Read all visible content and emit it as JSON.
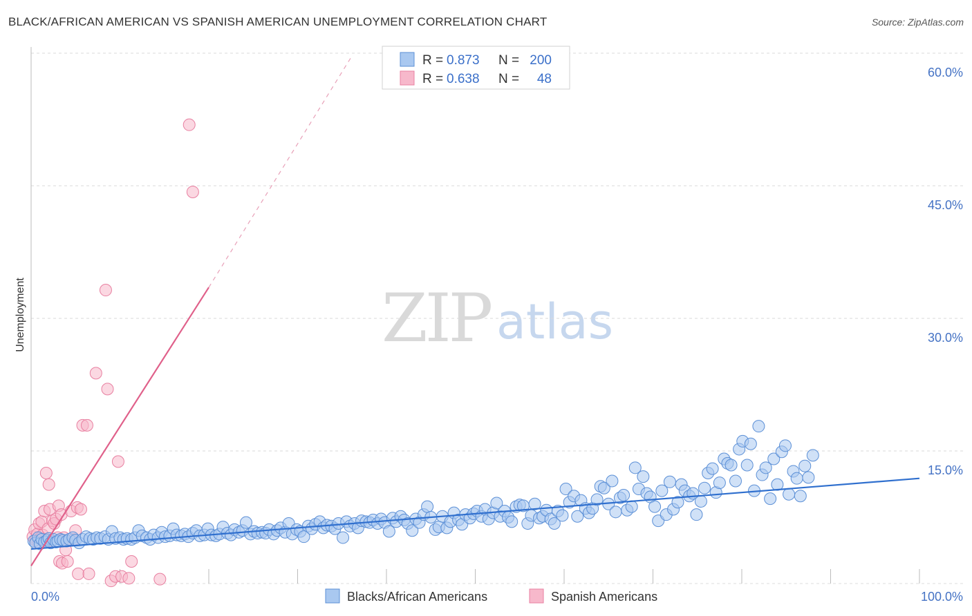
{
  "title": "BLACK/AFRICAN AMERICAN VS SPANISH AMERICAN UNEMPLOYMENT CORRELATION CHART",
  "source": "Source: ZipAtlas.com",
  "watermark": {
    "zip": "ZIP",
    "atlas": "atlas"
  },
  "legend_top": [
    {
      "r_label": "R =",
      "r_value": "0.873",
      "n_label": "N =",
      "n_value": "200"
    },
    {
      "r_label": "R =",
      "r_value": "0.638",
      "n_label": "N =",
      "n_value": "48"
    }
  ],
  "colors": {
    "blue_fill": "#a9c8f0",
    "blue_stroke": "#5b8fd6",
    "blue_line": "#2f6fce",
    "pink_fill": "#f7b8cb",
    "pink_stroke": "#e87fa0",
    "pink_line": "#e0608a",
    "grid": "#d9d9d9",
    "axis_text": "#4472c4"
  },
  "chart_data": {
    "type": "scatter",
    "title": "BLACK/AFRICAN AMERICAN VS SPANISH AMERICAN UNEMPLOYMENT CORRELATION CHART",
    "xlabel": "",
    "ylabel": "Unemployment",
    "xlim": [
      0,
      100
    ],
    "ylim": [
      0,
      60
    ],
    "x_tick_labels": [
      "0.0%",
      "100.0%"
    ],
    "y_ticks": [
      15,
      30,
      45,
      60
    ],
    "y_tick_labels": [
      "15.0%",
      "30.0%",
      "45.0%",
      "60.0%"
    ],
    "grid": true,
    "legend": "bottom-center",
    "series": [
      {
        "name": "Blacks/African Americans",
        "r": 0.873,
        "n": 200,
        "trend": {
          "x0": 0,
          "y0": 3.9,
          "x1": 100,
          "y1": 11.9
        },
        "points": [
          [
            0.3,
            4.8
          ],
          [
            0.5,
            4.6
          ],
          [
            0.8,
            5.2
          ],
          [
            1.0,
            4.5
          ],
          [
            1.2,
            5.0
          ],
          [
            1.5,
            4.7
          ],
          [
            1.8,
            4.9
          ],
          [
            2.0,
            5.1
          ],
          [
            2.2,
            4.6
          ],
          [
            2.5,
            5.0
          ],
          [
            2.8,
            4.7
          ],
          [
            3.0,
            4.8
          ],
          [
            3.3,
            5.0
          ],
          [
            3.6,
            4.9
          ],
          [
            4.0,
            4.8
          ],
          [
            4.3,
            5.0
          ],
          [
            4.7,
            5.2
          ],
          [
            5.0,
            4.9
          ],
          [
            5.4,
            4.6
          ],
          [
            5.8,
            5.0
          ],
          [
            6.2,
            5.3
          ],
          [
            6.6,
            5.1
          ],
          [
            7.0,
            5.0
          ],
          [
            7.4,
            5.2
          ],
          [
            7.8,
            5.1
          ],
          [
            8.3,
            5.3
          ],
          [
            8.7,
            5.0
          ],
          [
            9.1,
            5.9
          ],
          [
            9.5,
            5.1
          ],
          [
            10.0,
            5.2
          ],
          [
            10.4,
            5.0
          ],
          [
            10.8,
            5.1
          ],
          [
            11.3,
            5.0
          ],
          [
            11.7,
            5.2
          ],
          [
            12.1,
            6.0
          ],
          [
            12.5,
            5.4
          ],
          [
            13.0,
            5.2
          ],
          [
            13.4,
            5.0
          ],
          [
            13.8,
            5.5
          ],
          [
            14.3,
            5.2
          ],
          [
            14.7,
            5.8
          ],
          [
            15.1,
            5.3
          ],
          [
            15.6,
            5.4
          ],
          [
            16.0,
            6.2
          ],
          [
            16.4,
            5.5
          ],
          [
            16.9,
            5.4
          ],
          [
            17.3,
            5.6
          ],
          [
            17.7,
            5.3
          ],
          [
            18.2,
            5.7
          ],
          [
            18.6,
            6.0
          ],
          [
            19.0,
            5.4
          ],
          [
            19.5,
            5.5
          ],
          [
            19.9,
            6.2
          ],
          [
            20.3,
            5.5
          ],
          [
            20.8,
            5.4
          ],
          [
            21.2,
            5.6
          ],
          [
            21.6,
            6.4
          ],
          [
            22.1,
            5.7
          ],
          [
            22.5,
            5.5
          ],
          [
            22.9,
            6.1
          ],
          [
            23.4,
            5.8
          ],
          [
            23.8,
            6.0
          ],
          [
            24.2,
            6.9
          ],
          [
            24.7,
            5.6
          ],
          [
            25.1,
            5.9
          ],
          [
            25.5,
            5.7
          ],
          [
            26.0,
            5.8
          ],
          [
            26.4,
            5.7
          ],
          [
            26.8,
            6.1
          ],
          [
            27.3,
            5.6
          ],
          [
            27.7,
            6.0
          ],
          [
            28.1,
            6.3
          ],
          [
            28.6,
            5.8
          ],
          [
            29.0,
            6.8
          ],
          [
            29.4,
            5.6
          ],
          [
            29.9,
            6.1
          ],
          [
            30.3,
            5.9
          ],
          [
            30.7,
            5.3
          ],
          [
            31.2,
            6.5
          ],
          [
            31.6,
            6.2
          ],
          [
            32.0,
            6.7
          ],
          [
            32.5,
            7.0
          ],
          [
            32.9,
            6.3
          ],
          [
            33.3,
            6.6
          ],
          [
            33.8,
            6.5
          ],
          [
            34.2,
            6.2
          ],
          [
            34.6,
            6.8
          ],
          [
            35.1,
            5.2
          ],
          [
            35.5,
            7.0
          ],
          [
            35.9,
            6.5
          ],
          [
            36.4,
            6.8
          ],
          [
            36.8,
            6.3
          ],
          [
            37.2,
            7.1
          ],
          [
            37.7,
            7.0
          ],
          [
            38.1,
            6.9
          ],
          [
            38.5,
            7.2
          ],
          [
            39.0,
            6.8
          ],
          [
            39.4,
            7.3
          ],
          [
            39.8,
            6.9
          ],
          [
            40.3,
            5.9
          ],
          [
            40.7,
            7.4
          ],
          [
            41.1,
            7.0
          ],
          [
            41.6,
            7.6
          ],
          [
            42.0,
            7.2
          ],
          [
            42.4,
            6.8
          ],
          [
            42.9,
            6.0
          ],
          [
            43.3,
            7.3
          ],
          [
            43.7,
            6.9
          ],
          [
            44.2,
            7.8
          ],
          [
            44.6,
            8.7
          ],
          [
            45.0,
            7.5
          ],
          [
            45.5,
            6.1
          ],
          [
            45.9,
            6.4
          ],
          [
            46.3,
            7.6
          ],
          [
            46.8,
            6.3
          ],
          [
            47.2,
            7.0
          ],
          [
            47.6,
            8.0
          ],
          [
            48.1,
            7.2
          ],
          [
            48.5,
            6.7
          ],
          [
            48.9,
            7.8
          ],
          [
            49.4,
            7.4
          ],
          [
            49.8,
            7.9
          ],
          [
            50.2,
            8.2
          ],
          [
            50.7,
            7.6
          ],
          [
            51.1,
            8.4
          ],
          [
            51.5,
            7.3
          ],
          [
            52.0,
            8.0
          ],
          [
            52.4,
            9.1
          ],
          [
            52.8,
            7.6
          ],
          [
            53.3,
            8.2
          ],
          [
            53.7,
            7.5
          ],
          [
            54.1,
            7.0
          ],
          [
            54.6,
            8.7
          ],
          [
            55.0,
            8.9
          ],
          [
            55.4,
            8.8
          ],
          [
            55.9,
            6.8
          ],
          [
            56.3,
            7.7
          ],
          [
            56.7,
            9.0
          ],
          [
            57.2,
            7.4
          ],
          [
            57.6,
            7.6
          ],
          [
            58.0,
            8.3
          ],
          [
            58.5,
            7.3
          ],
          [
            58.9,
            6.8
          ],
          [
            59.3,
            8.2
          ],
          [
            59.8,
            7.7
          ],
          [
            60.2,
            10.7
          ],
          [
            60.6,
            9.2
          ],
          [
            61.1,
            9.9
          ],
          [
            61.5,
            7.6
          ],
          [
            61.9,
            9.4
          ],
          [
            62.4,
            8.5
          ],
          [
            62.8,
            8.0
          ],
          [
            63.2,
            8.5
          ],
          [
            63.7,
            9.5
          ],
          [
            64.1,
            11.0
          ],
          [
            64.5,
            10.8
          ],
          [
            65.0,
            9.0
          ],
          [
            65.4,
            11.6
          ],
          [
            65.8,
            8.1
          ],
          [
            66.3,
            9.7
          ],
          [
            66.7,
            10.0
          ],
          [
            67.1,
            8.3
          ],
          [
            67.6,
            8.7
          ],
          [
            68.0,
            13.1
          ],
          [
            68.4,
            10.7
          ],
          [
            68.9,
            12.1
          ],
          [
            69.3,
            10.2
          ],
          [
            69.7,
            9.8
          ],
          [
            70.2,
            8.7
          ],
          [
            70.6,
            7.1
          ],
          [
            71.0,
            10.5
          ],
          [
            71.5,
            7.8
          ],
          [
            71.9,
            11.5
          ],
          [
            72.3,
            8.4
          ],
          [
            72.8,
            9.2
          ],
          [
            73.2,
            11.2
          ],
          [
            73.6,
            10.5
          ],
          [
            74.1,
            9.9
          ],
          [
            74.5,
            10.2
          ],
          [
            74.9,
            7.8
          ],
          [
            75.4,
            9.3
          ],
          [
            75.8,
            10.8
          ],
          [
            76.2,
            12.5
          ],
          [
            76.7,
            13.0
          ],
          [
            77.1,
            10.3
          ],
          [
            77.5,
            11.4
          ],
          [
            78.0,
            14.1
          ],
          [
            78.4,
            13.6
          ],
          [
            78.8,
            13.4
          ],
          [
            79.3,
            11.6
          ],
          [
            79.7,
            15.2
          ],
          [
            80.1,
            16.1
          ],
          [
            80.6,
            13.4
          ],
          [
            81.0,
            15.8
          ],
          [
            81.4,
            10.5
          ],
          [
            81.9,
            17.8
          ],
          [
            82.3,
            12.3
          ],
          [
            82.7,
            13.1
          ],
          [
            83.2,
            9.6
          ],
          [
            83.6,
            14.1
          ],
          [
            84.0,
            11.2
          ],
          [
            84.5,
            14.9
          ],
          [
            84.9,
            15.6
          ],
          [
            85.3,
            10.1
          ],
          [
            85.8,
            12.7
          ],
          [
            86.2,
            11.9
          ],
          [
            86.6,
            9.9
          ],
          [
            87.1,
            13.3
          ],
          [
            87.5,
            12.0
          ],
          [
            88.0,
            14.5
          ]
        ]
      },
      {
        "name": "Spanish Americans",
        "r": 0.638,
        "n": 48,
        "trend": {
          "x0": 0,
          "y0": 2.0,
          "x1": 20,
          "y1": 33.5
        },
        "trend_dashed": {
          "x0": 20,
          "y0": 33.5,
          "x1": 36,
          "y1": 59.5
        },
        "points": [
          [
            0.2,
            5.3
          ],
          [
            0.4,
            6.1
          ],
          [
            0.5,
            4.9
          ],
          [
            0.7,
            5.6
          ],
          [
            0.9,
            6.8
          ],
          [
            1.0,
            5.1
          ],
          [
            1.2,
            7.0
          ],
          [
            1.3,
            5.5
          ],
          [
            1.5,
            8.2
          ],
          [
            1.6,
            5.0
          ],
          [
            1.7,
            12.5
          ],
          [
            1.9,
            6.2
          ],
          [
            2.0,
            11.2
          ],
          [
            2.1,
            8.4
          ],
          [
            2.3,
            4.8
          ],
          [
            2.4,
            7.1
          ],
          [
            2.6,
            6.8
          ],
          [
            2.8,
            7.3
          ],
          [
            3.0,
            5.2
          ],
          [
            3.1,
            8.8
          ],
          [
            3.2,
            2.5
          ],
          [
            3.4,
            7.8
          ],
          [
            3.5,
            2.3
          ],
          [
            3.7,
            5.2
          ],
          [
            3.9,
            3.8
          ],
          [
            4.1,
            2.5
          ],
          [
            4.5,
            8.2
          ],
          [
            4.8,
            5.0
          ],
          [
            5.0,
            6.0
          ],
          [
            5.2,
            8.6
          ],
          [
            5.3,
            1.1
          ],
          [
            5.6,
            8.4
          ],
          [
            5.8,
            17.9
          ],
          [
            6.3,
            17.9
          ],
          [
            6.5,
            1.1
          ],
          [
            7.3,
            23.8
          ],
          [
            8.4,
            33.2
          ],
          [
            8.6,
            22.0
          ],
          [
            9.0,
            0.3
          ],
          [
            9.5,
            0.8
          ],
          [
            9.8,
            13.8
          ],
          [
            10.2,
            0.8
          ],
          [
            11.0,
            0.6
          ],
          [
            11.3,
            2.5
          ],
          [
            17.8,
            51.9
          ],
          [
            18.2,
            44.3
          ],
          [
            14.5,
            0.5
          ],
          [
            0.8,
            4.6
          ]
        ]
      }
    ]
  }
}
